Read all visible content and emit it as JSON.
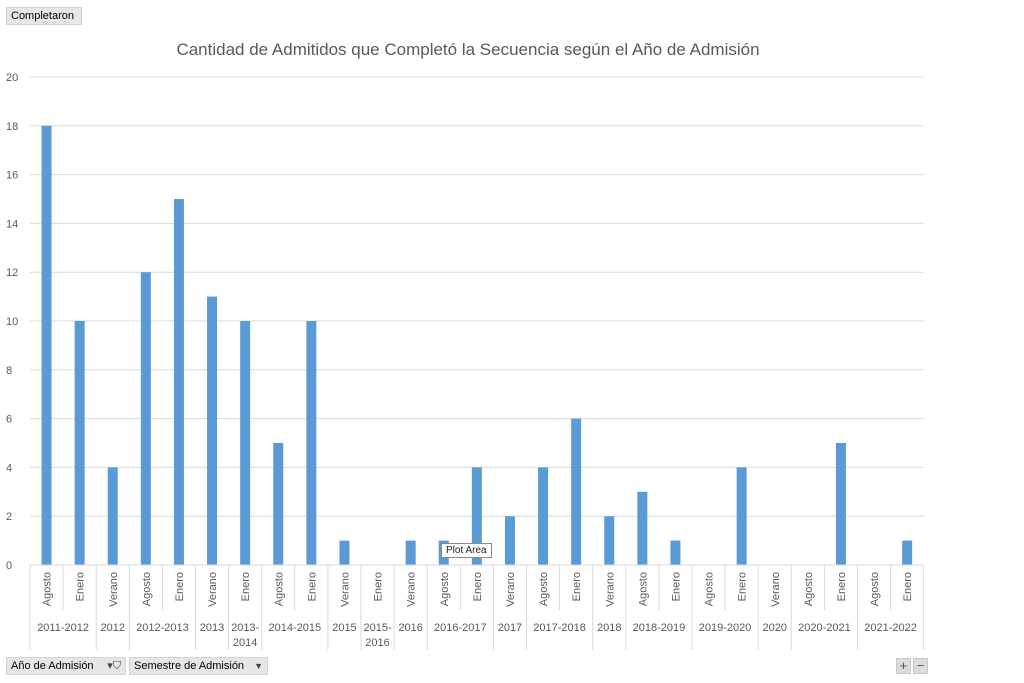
{
  "pivot": {
    "values_field": "Completaron",
    "axis_fields": [
      {
        "label": "Año de Admisión",
        "icon": "filter-dropdown-icon"
      },
      {
        "label": "Semestre de Admisión",
        "icon": "dropdown-icon"
      }
    ],
    "zoom_in": "+",
    "zoom_out": "−",
    "tooltip": "Plot Area"
  },
  "chart_data": {
    "type": "bar",
    "title": "Cantidad de Admitidos que Completó la Secuencia según el Año de Admisión",
    "xlabel": "",
    "ylabel": "",
    "ylim": [
      0,
      20
    ],
    "yticks": [
      0,
      2,
      4,
      6,
      8,
      10,
      12,
      14,
      16,
      18,
      20
    ],
    "grid": true,
    "bar_color": "#5b9bd5",
    "groups": [
      {
        "label": "2011-2012",
        "items": [
          {
            "label": "Agosto",
            "value": 18
          },
          {
            "label": "Enero",
            "value": 10
          }
        ]
      },
      {
        "label": "2012",
        "items": [
          {
            "label": "Verano",
            "value": 4
          }
        ]
      },
      {
        "label": "2012-2013",
        "items": [
          {
            "label": "Agosto",
            "value": 12
          },
          {
            "label": "Enero",
            "value": 15
          }
        ]
      },
      {
        "label": "2013",
        "items": [
          {
            "label": "Verano",
            "value": 11
          }
        ]
      },
      {
        "label": "2013-2014",
        "items": [
          {
            "label": "Enero",
            "value": 10
          }
        ]
      },
      {
        "label": "2014-2015",
        "items": [
          {
            "label": "Agosto",
            "value": 5
          },
          {
            "label": "Enero",
            "value": 10
          }
        ]
      },
      {
        "label": "2015",
        "items": [
          {
            "label": "Verano",
            "value": 1
          }
        ]
      },
      {
        "label": "2015-2016",
        "items": [
          {
            "label": "Enero",
            "value": null
          }
        ]
      },
      {
        "label": "2016",
        "items": [
          {
            "label": "Verano",
            "value": 1
          }
        ]
      },
      {
        "label": "2016-2017",
        "items": [
          {
            "label": "Agosto",
            "value": 1
          },
          {
            "label": "Enero",
            "value": 4
          }
        ]
      },
      {
        "label": "2017",
        "items": [
          {
            "label": "Verano",
            "value": 2
          }
        ]
      },
      {
        "label": "2017-2018",
        "items": [
          {
            "label": "Agosto",
            "value": 4
          },
          {
            "label": "Enero",
            "value": 6
          }
        ]
      },
      {
        "label": "2018",
        "items": [
          {
            "label": "Verano",
            "value": 2
          }
        ]
      },
      {
        "label": "2018-2019",
        "items": [
          {
            "label": "Agosto",
            "value": 3
          },
          {
            "label": "Enero",
            "value": 1
          }
        ]
      },
      {
        "label": "2019-2020",
        "items": [
          {
            "label": "Agosto",
            "value": null
          },
          {
            "label": "Enero",
            "value": 4
          }
        ]
      },
      {
        "label": "2020",
        "items": [
          {
            "label": "Verano",
            "value": null
          }
        ]
      },
      {
        "label": "2020-2021",
        "items": [
          {
            "label": "Agosto",
            "value": null
          },
          {
            "label": "Enero",
            "value": 5
          }
        ]
      },
      {
        "label": "2021-2022",
        "items": [
          {
            "label": "Agosto",
            "value": null
          },
          {
            "label": "Enero",
            "value": 1
          }
        ]
      }
    ]
  }
}
